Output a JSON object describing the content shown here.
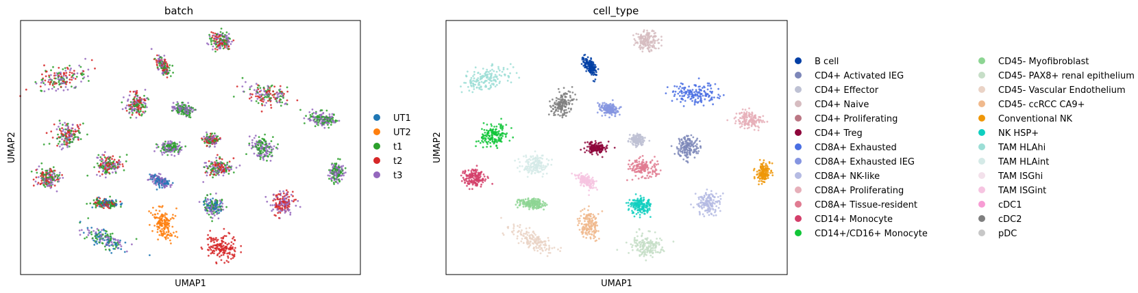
{
  "chart_data": [
    {
      "type": "scatter",
      "title": "batch",
      "xlabel": "UMAP1",
      "ylabel": "UMAP2",
      "grid": false,
      "legend_placement": "right",
      "legend": [
        {
          "label": "UT1",
          "color": "#1f77b4"
        },
        {
          "label": "UT2",
          "color": "#ff7f0e"
        },
        {
          "label": "t1",
          "color": "#2ca02c"
        },
        {
          "label": "t2",
          "color": "#d62728"
        },
        {
          "label": "t3",
          "color": "#9467bd"
        }
      ],
      "clusters": [
        {
          "x": 0.59,
          "y": 0.92,
          "colors": [
            "#2ca02c",
            "#d62728",
            "#9467bd"
          ]
        },
        {
          "x": 0.12,
          "y": 0.77,
          "colors": [
            "#d62728",
            "#9467bd",
            "#2ca02c"
          ]
        },
        {
          "x": 0.73,
          "y": 0.71,
          "colors": [
            "#9467bd",
            "#2ca02c",
            "#d62728"
          ]
        },
        {
          "x": 0.42,
          "y": 0.82,
          "colors": [
            "#9467bd",
            "#2ca02c",
            "#d62728"
          ]
        },
        {
          "x": 0.34,
          "y": 0.67,
          "colors": [
            "#2ca02c",
            "#9467bd",
            "#d62728"
          ]
        },
        {
          "x": 0.48,
          "y": 0.65,
          "colors": [
            "#2ca02c",
            "#9467bd"
          ]
        },
        {
          "x": 0.14,
          "y": 0.55,
          "colors": [
            "#2ca02c",
            "#d62728",
            "#9467bd"
          ]
        },
        {
          "x": 0.56,
          "y": 0.53,
          "colors": [
            "#2ca02c",
            "#9467bd",
            "#d62728"
          ]
        },
        {
          "x": 0.44,
          "y": 0.5,
          "colors": [
            "#2ca02c",
            "#9467bd"
          ]
        },
        {
          "x": 0.71,
          "y": 0.5,
          "colors": [
            "#2ca02c",
            "#9467bd"
          ]
        },
        {
          "x": 0.89,
          "y": 0.61,
          "colors": [
            "#2ca02c",
            "#9467bd"
          ]
        },
        {
          "x": 0.26,
          "y": 0.43,
          "colors": [
            "#d62728",
            "#9467bd",
            "#2ca02c"
          ]
        },
        {
          "x": 0.08,
          "y": 0.38,
          "colors": [
            "#d62728",
            "#9467bd",
            "#2ca02c"
          ]
        },
        {
          "x": 0.58,
          "y": 0.42,
          "colors": [
            "#d62728",
            "#9467bd",
            "#2ca02c"
          ]
        },
        {
          "x": 0.41,
          "y": 0.37,
          "colors": [
            "#1f77b4",
            "#9467bd"
          ]
        },
        {
          "x": 0.93,
          "y": 0.4,
          "colors": [
            "#2ca02c",
            "#9467bd"
          ]
        },
        {
          "x": 0.25,
          "y": 0.28,
          "colors": [
            "#1f77b4",
            "#2ca02c",
            "#d62728"
          ]
        },
        {
          "x": 0.57,
          "y": 0.27,
          "colors": [
            "#2ca02c",
            "#9467bd",
            "#1f77b4"
          ]
        },
        {
          "x": 0.77,
          "y": 0.28,
          "colors": [
            "#9467bd",
            "#d62728"
          ]
        },
        {
          "x": 0.42,
          "y": 0.2,
          "colors": [
            "#ff7f0e"
          ]
        },
        {
          "x": 0.25,
          "y": 0.14,
          "colors": [
            "#1f77b4",
            "#9467bd",
            "#2ca02c"
          ]
        },
        {
          "x": 0.59,
          "y": 0.11,
          "colors": [
            "#d62728"
          ]
        }
      ]
    },
    {
      "type": "scatter",
      "title": "cell_type",
      "xlabel": "UMAP1",
      "ylabel": "UMAP2",
      "grid": false,
      "legend_placement": "right",
      "legend": [
        {
          "label": "B cell",
          "color": "#023fa5"
        },
        {
          "label": "CD4+ Activated IEG",
          "color": "#7d87b9"
        },
        {
          "label": "CD4+ Effector",
          "color": "#bec1d4"
        },
        {
          "label": "CD4+ Naive",
          "color": "#d6bcc0"
        },
        {
          "label": "CD4+ Proliferating",
          "color": "#bb7784"
        },
        {
          "label": "CD4+ Treg",
          "color": "#8e063b"
        },
        {
          "label": "CD8A+ Exhausted",
          "color": "#4a6fe3"
        },
        {
          "label": "CD8A+ Exhausted IEG",
          "color": "#8595e1"
        },
        {
          "label": "CD8A+ NK-like",
          "color": "#b5bbe3"
        },
        {
          "label": "CD8A+ Proliferating",
          "color": "#e6afb9"
        },
        {
          "label": "CD8A+ Tissue-resident",
          "color": "#e07b91"
        },
        {
          "label": "CD14+ Monocyte",
          "color": "#d33f6a"
        },
        {
          "label": "CD14+/CD16+ Monocyte",
          "color": "#11c638"
        },
        {
          "label": "CD45- Myofibroblast",
          "color": "#8dd593"
        },
        {
          "label": "CD45- PAX8+ renal epithelium",
          "color": "#c6dec7"
        },
        {
          "label": "CD45- Vascular Endothelium",
          "color": "#ead3c6"
        },
        {
          "label": "CD45- ccRCC CA9+",
          "color": "#f0b98d"
        },
        {
          "label": "Conventional NK",
          "color": "#ef9708"
        },
        {
          "label": "NK HSP+",
          "color": "#0fcfc0"
        },
        {
          "label": "TAM HLAhi",
          "color": "#9cded6"
        },
        {
          "label": "TAM HLAint",
          "color": "#d5eae7"
        },
        {
          "label": "TAM ISGhi",
          "color": "#f3e1eb"
        },
        {
          "label": "TAM ISGint",
          "color": "#f6c4e1"
        },
        {
          "label": "cDC1",
          "color": "#f79cd4"
        },
        {
          "label": "cDC2",
          "color": "#7f7f7f"
        },
        {
          "label": "pDC",
          "color": "#c7c7c7"
        }
      ],
      "clusters": [
        {
          "x": 0.59,
          "y": 0.92,
          "label": "CD4+ Naive"
        },
        {
          "x": 0.12,
          "y": 0.77,
          "label": "TAM HLAhi"
        },
        {
          "x": 0.73,
          "y": 0.71,
          "label": "CD8A+ Exhausted"
        },
        {
          "x": 0.42,
          "y": 0.82,
          "label": "B cell"
        },
        {
          "x": 0.34,
          "y": 0.67,
          "label": "cDC2"
        },
        {
          "x": 0.48,
          "y": 0.65,
          "label": "CD8A+ Exhausted IEG"
        },
        {
          "x": 0.14,
          "y": 0.55,
          "label": "CD14+/CD16+ Monocyte"
        },
        {
          "x": 0.56,
          "y": 0.53,
          "label": "CD4+ Effector"
        },
        {
          "x": 0.44,
          "y": 0.5,
          "label": "CD4+ Treg"
        },
        {
          "x": 0.71,
          "y": 0.5,
          "label": "CD4+ Activated IEG"
        },
        {
          "x": 0.89,
          "y": 0.61,
          "label": "CD8A+ Proliferating"
        },
        {
          "x": 0.26,
          "y": 0.43,
          "label": "TAM HLAint"
        },
        {
          "x": 0.08,
          "y": 0.38,
          "label": "CD14+ Monocyte"
        },
        {
          "x": 0.58,
          "y": 0.42,
          "label": "CD8A+ Tissue-resident"
        },
        {
          "x": 0.41,
          "y": 0.37,
          "label": "TAM ISGint"
        },
        {
          "x": 0.93,
          "y": 0.4,
          "label": "Conventional NK"
        },
        {
          "x": 0.25,
          "y": 0.28,
          "label": "CD45- Myofibroblast"
        },
        {
          "x": 0.57,
          "y": 0.27,
          "label": "NK HSP+"
        },
        {
          "x": 0.77,
          "y": 0.28,
          "label": "CD8A+ NK-like"
        },
        {
          "x": 0.42,
          "y": 0.2,
          "label": "CD45- ccRCC CA9+"
        },
        {
          "x": 0.25,
          "y": 0.14,
          "label": "CD45- Vascular Endothelium"
        },
        {
          "x": 0.59,
          "y": 0.11,
          "label": "CD45- PAX8+ renal epithelium"
        }
      ]
    }
  ]
}
